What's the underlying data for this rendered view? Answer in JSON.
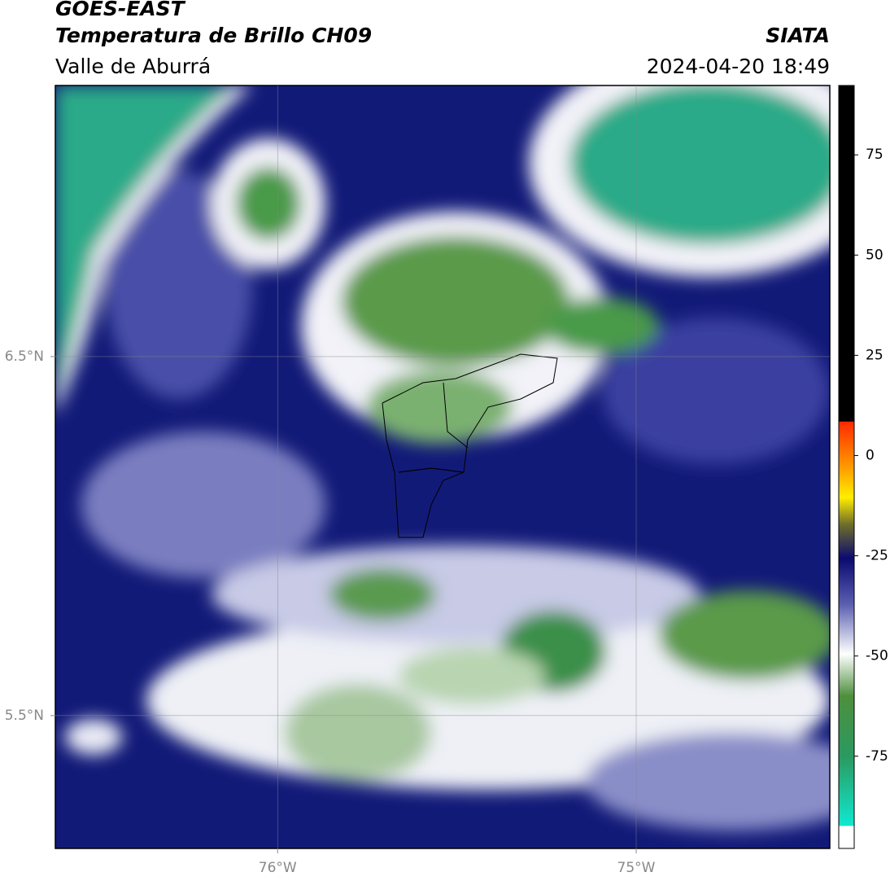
{
  "header": {
    "title": "GOES-EAST",
    "subtitle": "Temperatura de Brillo CH09",
    "region": "Valle de Aburrá",
    "source": "SIATA",
    "datetime": "2024-04-20 18:49"
  },
  "map": {
    "lonlim": [
      -76.62,
      -74.46
    ],
    "latlim": [
      5.13,
      7.255
    ],
    "lonticks": [
      {
        "value": -76,
        "label": "76°W"
      },
      {
        "value": -75,
        "label": "75°W"
      }
    ],
    "latticks": [
      {
        "value": 6.5,
        "label": "6.5°N"
      },
      {
        "value": 5.5,
        "label": "5.5°N"
      }
    ]
  },
  "colorbar": {
    "lim": [
      -98,
      92.3
    ],
    "ticks": [
      75,
      50,
      25,
      0,
      -25,
      -50,
      -75
    ]
  }
}
